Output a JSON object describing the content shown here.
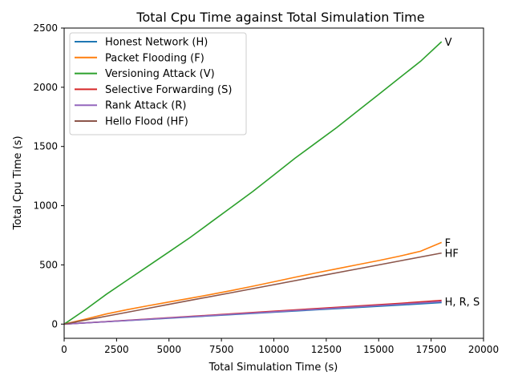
{
  "chart_data": {
    "type": "line",
    "title": "Total Cpu Time against Total Simulation Time",
    "xlabel": "Total Simulation Time (s)",
    "ylabel": "Total Cpu Time (s)",
    "xlim": [
      0,
      20000
    ],
    "ylim": [
      -120,
      2500
    ],
    "xticks": [
      0,
      2500,
      5000,
      7500,
      10000,
      12500,
      15000,
      17500,
      20000
    ],
    "yticks": [
      0,
      500,
      1000,
      1500,
      2000,
      2500
    ],
    "grid": false,
    "legend_position": "upper-left",
    "series": [
      {
        "name": "Honest Network (H)",
        "color": "#1f77b4",
        "x": [
          0,
          2000,
          4000,
          6000,
          8000,
          10000,
          12000,
          14000,
          16000,
          18000
        ],
        "y": [
          0,
          20,
          40,
          60,
          80,
          100,
          120,
          140,
          160,
          182
        ]
      },
      {
        "name": "Packet Flooding (F)",
        "color": "#ff7f0e",
        "x": [
          0,
          1000,
          2000,
          3000,
          4000,
          5000,
          6000,
          7000,
          8000,
          9000,
          10000,
          11000,
          12000,
          13000,
          14000,
          15000,
          16000,
          17000,
          18000
        ],
        "y": [
          0,
          42,
          85,
          122,
          155,
          187,
          218,
          250,
          284,
          320,
          357,
          395,
          432,
          467,
          502,
          537,
          574,
          615,
          690
        ]
      },
      {
        "name": "Versioning Attack (V)",
        "color": "#2ca02c",
        "x": [
          0,
          1000,
          2000,
          3000,
          4000,
          5000,
          6000,
          7000,
          8000,
          9000,
          10000,
          11000,
          12000,
          13000,
          14000,
          15000,
          16000,
          17000,
          18000
        ],
        "y": [
          0,
          120,
          250,
          370,
          490,
          610,
          730,
          860,
          990,
          1120,
          1260,
          1400,
          1530,
          1660,
          1800,
          1940,
          2080,
          2220,
          2385
        ]
      },
      {
        "name": "Selective Forwarding (S)",
        "color": "#d62728",
        "x": [
          0,
          2000,
          4000,
          6000,
          8000,
          10000,
          12000,
          14000,
          16000,
          18000
        ],
        "y": [
          0,
          21,
          43,
          65,
          87,
          109,
          131,
          153,
          175,
          200
        ]
      },
      {
        "name": "Rank Attack (R)",
        "color": "#9467bd",
        "x": [
          0,
          2000,
          4000,
          6000,
          8000,
          10000,
          12000,
          14000,
          16000,
          18000
        ],
        "y": [
          0,
          20,
          41,
          62,
          83,
          104,
          125,
          146,
          168,
          190
        ]
      },
      {
        "name": "Hello Flood (HF)",
        "color": "#8c564b",
        "x": [
          0,
          2000,
          4000,
          6000,
          8000,
          10000,
          12000,
          14000,
          16000,
          18000
        ],
        "y": [
          0,
          66,
          133,
          200,
          266,
          333,
          400,
          466,
          533,
          600
        ]
      }
    ],
    "annotations": [
      {
        "text": "V",
        "x": 18150,
        "y": 2385
      },
      {
        "text": "F",
        "x": 18150,
        "y": 690
      },
      {
        "text": "HF",
        "x": 18150,
        "y": 600
      },
      {
        "text": "H, R, S",
        "x": 18150,
        "y": 190
      }
    ]
  }
}
